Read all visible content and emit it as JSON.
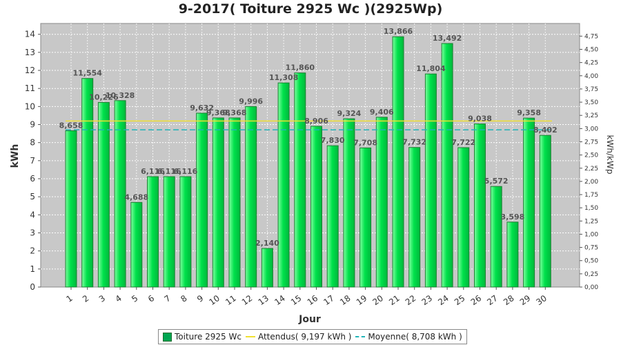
{
  "chart_data": {
    "type": "bar",
    "title": "9-2017( Toiture 2925 Wc )(2925Wp)",
    "xlabel": "Jour",
    "ylabel": "kWh",
    "y2label": "kWh/kWp",
    "ylim": [
      0,
      14.6
    ],
    "y2lim": [
      0,
      4.99
    ],
    "yticks": [
      "0",
      "1",
      "2",
      "3",
      "4",
      "5",
      "6",
      "7",
      "8",
      "9",
      "10",
      "11",
      "12",
      "13",
      "14"
    ],
    "y2ticks": [
      "0,00",
      "0,25",
      "0,50",
      "0,75",
      "1,00",
      "1,25",
      "1,50",
      "1,75",
      "2,00",
      "2,25",
      "2,50",
      "2,75",
      "3,00",
      "3,25",
      "3,50",
      "3,75",
      "4,00",
      "4,25",
      "4,50",
      "4,75"
    ],
    "categories": [
      "1",
      "2",
      "3",
      "4",
      "5",
      "6",
      "7",
      "8",
      "9",
      "10",
      "11",
      "12",
      "13",
      "14",
      "15",
      "16",
      "17",
      "18",
      "19",
      "20",
      "21",
      "22",
      "23",
      "24",
      "25",
      "26",
      "27",
      "28",
      "29",
      "30"
    ],
    "values": [
      8.658,
      11.554,
      10.226,
      10.328,
      4.688,
      6.116,
      6.116,
      6.116,
      9.632,
      9.368,
      9.368,
      9.996,
      2.14,
      11.308,
      11.86,
      8.906,
      7.83,
      9.324,
      7.708,
      9.406,
      13.866,
      7.732,
      11.804,
      13.492,
      7.722,
      9.038,
      5.572,
      3.598,
      9.358,
      8.402
    ],
    "value_labels": [
      "8,658",
      "11,554",
      "10,226",
      "10,328",
      "4,688",
      "6,116",
      "6,116",
      "6,116",
      "9,632",
      "9,368",
      "9,368",
      "9,996",
      "2,140",
      "11,308",
      "11,860",
      "8,906",
      "7,830",
      "9,324",
      "7,708",
      "9,406",
      "13,866",
      "7,732",
      "11,804",
      "13,492",
      "7,722",
      "9,038",
      "5,572",
      "3,598",
      "9,358",
      "8,402"
    ],
    "expected": 9.197,
    "average": 8.708,
    "grid": true,
    "legend_placement": "bottom-center"
  },
  "legend": {
    "series": "Toiture 2925 Wc",
    "expected": "Attendus( 9,197 kWh )",
    "average": "Moyenne( 8,708 kWh )"
  },
  "colors": {
    "bar": "#00e14b",
    "bar_edge": "#1d7f33",
    "plot_bg": "#c8c8c8",
    "expected_line": "#f0e030",
    "average_line": "#20b4b8"
  }
}
